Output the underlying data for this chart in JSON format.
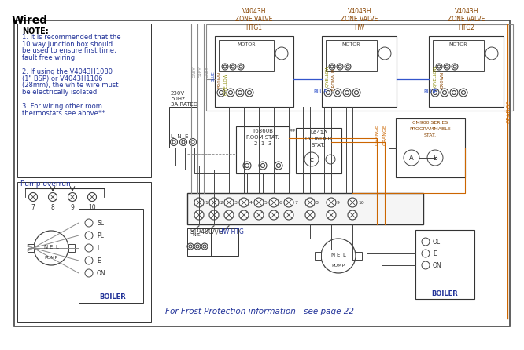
{
  "title": "Wired",
  "background_color": "#ffffff",
  "border_color": "#444444",
  "note_text": "NOTE:",
  "note_lines": [
    "1. It is recommended that the",
    "10 way junction box should",
    "be used to ensure first time,",
    "fault free wiring.",
    "",
    "2. If using the V4043H1080",
    "(1\" BSP) or V4043H1106",
    "(28mm), the white wire must",
    "be electrically isolated.",
    "",
    "3. For wiring other room",
    "thermostats see above**."
  ],
  "pump_overrun_label": "Pump overrun",
  "zone_valve_labels": [
    "V4043H\nZONE VALVE\nHTG1",
    "V4043H\nZONE VALVE\nHW",
    "V4043H\nZONE VALVE\nHTG2"
  ],
  "frost_text": "For Frost Protection information - see page 22",
  "supply_label": "230V\n50Hz\n3A RATED",
  "lne_label": "L  N  E",
  "t6360b_label": "T6360B\nROOM STAT.\n2  1  3",
  "l641a_label": "L641A\nCYLINDER\nSTAT.",
  "cm900_label": "CM900 SERIES\nPROGRAMMABLE\nSTAT.",
  "st9400_label": "ST9400A/C",
  "hw_htg_label": "HW HTG",
  "boiler_label": "BOILER",
  "pump_label": "PUMP",
  "motor_label": "MOTOR",
  "wire_colors": {
    "grey": "#888888",
    "blue": "#3355cc",
    "brown": "#884400",
    "gyellow": "#888800",
    "orange": "#cc6600",
    "black": "#222222"
  },
  "terminal_numbers": [
    "1",
    "2",
    "3",
    "4",
    "5",
    "6",
    "7",
    "8",
    "9",
    "10"
  ],
  "boiler_terminal_labels": [
    "SL",
    "PL",
    "L",
    "E",
    "ON"
  ],
  "pump_terminal_labels": [
    "N",
    "E",
    "L"
  ]
}
